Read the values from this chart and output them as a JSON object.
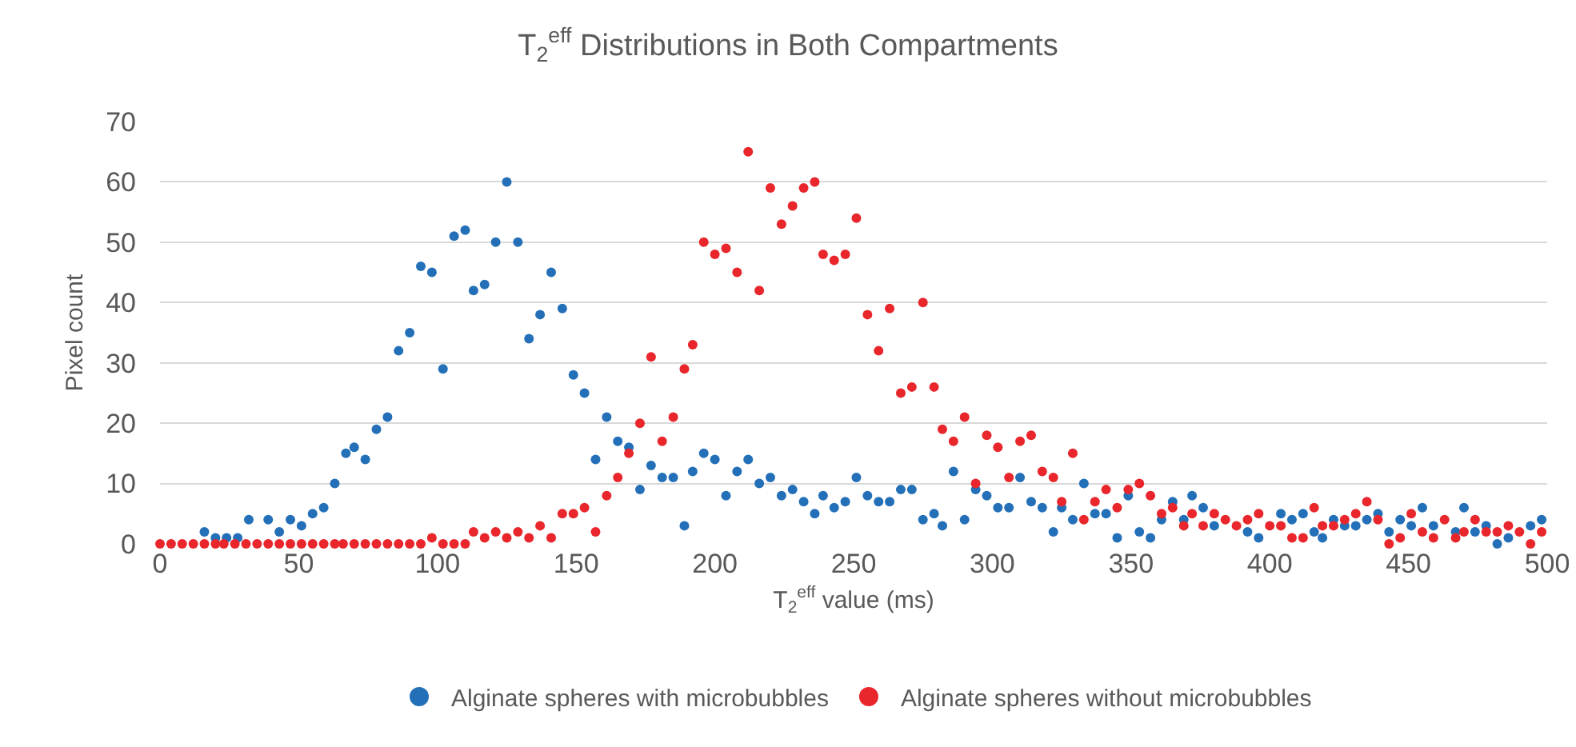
{
  "chart_data": {
    "type": "scatter",
    "title": "T$_{2}$$^{eff}$ Distributions in Both Compartments",
    "xlabel": "T$_{2}$$^{eff}$ value (ms)",
    "ylabel": "Pixel count",
    "xlim": [
      0,
      500
    ],
    "xticks": [
      0,
      50,
      100,
      150,
      200,
      250,
      300,
      350,
      400,
      450,
      500
    ],
    "ylim": [
      0,
      70
    ],
    "yticks": [
      0,
      10,
      20,
      30,
      40,
      50,
      60,
      70
    ],
    "grid": "y",
    "legend": "bottom",
    "marker": "circle",
    "series": [
      {
        "name": "Alginate spheres with microbubbles",
        "color": "#2470b8",
        "x": [
          16,
          20,
          24,
          28,
          32,
          39,
          43,
          47,
          51,
          55,
          59,
          63,
          67,
          70,
          74,
          78,
          82,
          86,
          90,
          94,
          98,
          102,
          106,
          110,
          113,
          117,
          121,
          125,
          129,
          133,
          137,
          141,
          145,
          149,
          153,
          157,
          161,
          165,
          169,
          173,
          177,
          181,
          185,
          189,
          192,
          196,
          200,
          204,
          208,
          212,
          216,
          220,
          224,
          228,
          232,
          236,
          239,
          243,
          247,
          251,
          255,
          259,
          263,
          267,
          271,
          275,
          279,
          282,
          286,
          290,
          294,
          298,
          302,
          306,
          310,
          314,
          318,
          322,
          325,
          329,
          333,
          337,
          341,
          345,
          349,
          353,
          357,
          361,
          365,
          369,
          372,
          376,
          380,
          392,
          396,
          404,
          408,
          412,
          416,
          419,
          423,
          427,
          431,
          435,
          439,
          443,
          447,
          451,
          455,
          459,
          467,
          470,
          474,
          478,
          482,
          486,
          494,
          498
        ],
        "values": [
          2,
          1,
          1,
          1,
          4,
          4,
          2,
          4,
          3,
          5,
          6,
          10,
          15,
          16,
          14,
          19,
          21,
          32,
          35,
          46,
          45,
          29,
          51,
          52,
          42,
          43,
          50,
          60,
          50,
          34,
          38,
          45,
          39,
          28,
          25,
          14,
          21,
          17,
          16,
          9,
          13,
          11,
          11,
          3,
          12,
          15,
          14,
          8,
          12,
          14,
          10,
          11,
          8,
          9,
          7,
          5,
          8,
          6,
          7,
          11,
          8,
          7,
          7,
          9,
          9,
          4,
          5,
          3,
          12,
          4,
          9,
          8,
          6,
          6,
          11,
          7,
          6,
          2,
          6,
          4,
          10,
          5,
          5,
          1,
          8,
          2,
          1,
          4,
          7,
          4,
          8,
          6,
          3,
          2,
          1,
          5,
          4,
          5,
          2,
          1,
          4,
          3,
          3,
          4,
          5,
          2,
          4,
          3,
          6,
          3,
          2,
          6,
          2,
          3,
          0,
          1,
          3,
          4
        ]
      },
      {
        "name": "Alginate spheres without microbubbles",
        "color": "#e8262b",
        "x": [
          0,
          4,
          8,
          12,
          16,
          20,
          23,
          27,
          31,
          35,
          39,
          43,
          47,
          51,
          55,
          59,
          63,
          66,
          70,
          74,
          78,
          82,
          86,
          90,
          94,
          98,
          102,
          106,
          110,
          113,
          117,
          121,
          125,
          129,
          133,
          137,
          141,
          145,
          149,
          153,
          157,
          161,
          165,
          169,
          173,
          177,
          181,
          185,
          189,
          192,
          196,
          200,
          204,
          208,
          212,
          216,
          220,
          224,
          228,
          232,
          236,
          239,
          243,
          247,
          251,
          255,
          259,
          263,
          267,
          271,
          275,
          279,
          282,
          286,
          290,
          294,
          298,
          302,
          306,
          310,
          314,
          318,
          322,
          325,
          329,
          333,
          337,
          341,
          345,
          349,
          353,
          357,
          361,
          365,
          369,
          372,
          376,
          380,
          384,
          388,
          392,
          396,
          400,
          404,
          408,
          412,
          416,
          419,
          423,
          427,
          431,
          435,
          439,
          443,
          447,
          451,
          455,
          459,
          463,
          467,
          470,
          474,
          478,
          482,
          486,
          490,
          494,
          498
        ],
        "values": [
          0,
          0,
          0,
          0,
          0,
          0,
          0,
          0,
          0,
          0,
          0,
          0,
          0,
          0,
          0,
          0,
          0,
          0,
          0,
          0,
          0,
          0,
          0,
          0,
          0,
          1,
          0,
          0,
          0,
          2,
          1,
          2,
          1,
          2,
          1,
          3,
          1,
          5,
          5,
          6,
          2,
          8,
          11,
          15,
          20,
          31,
          17,
          21,
          29,
          33,
          50,
          48,
          49,
          45,
          65,
          42,
          59,
          53,
          56,
          59,
          60,
          48,
          47,
          48,
          54,
          38,
          32,
          39,
          25,
          26,
          40,
          26,
          19,
          17,
          21,
          10,
          18,
          16,
          11,
          17,
          18,
          12,
          11,
          7,
          15,
          4,
          7,
          9,
          6,
          9,
          10,
          8,
          5,
          6,
          3,
          5,
          3,
          5,
          4,
          3,
          4,
          5,
          3,
          3,
          1,
          1,
          6,
          3,
          3,
          4,
          5,
          7,
          4,
          0,
          1,
          5,
          2,
          1,
          4,
          1,
          2,
          4,
          2,
          2,
          3,
          2,
          0,
          2
        ]
      }
    ]
  }
}
